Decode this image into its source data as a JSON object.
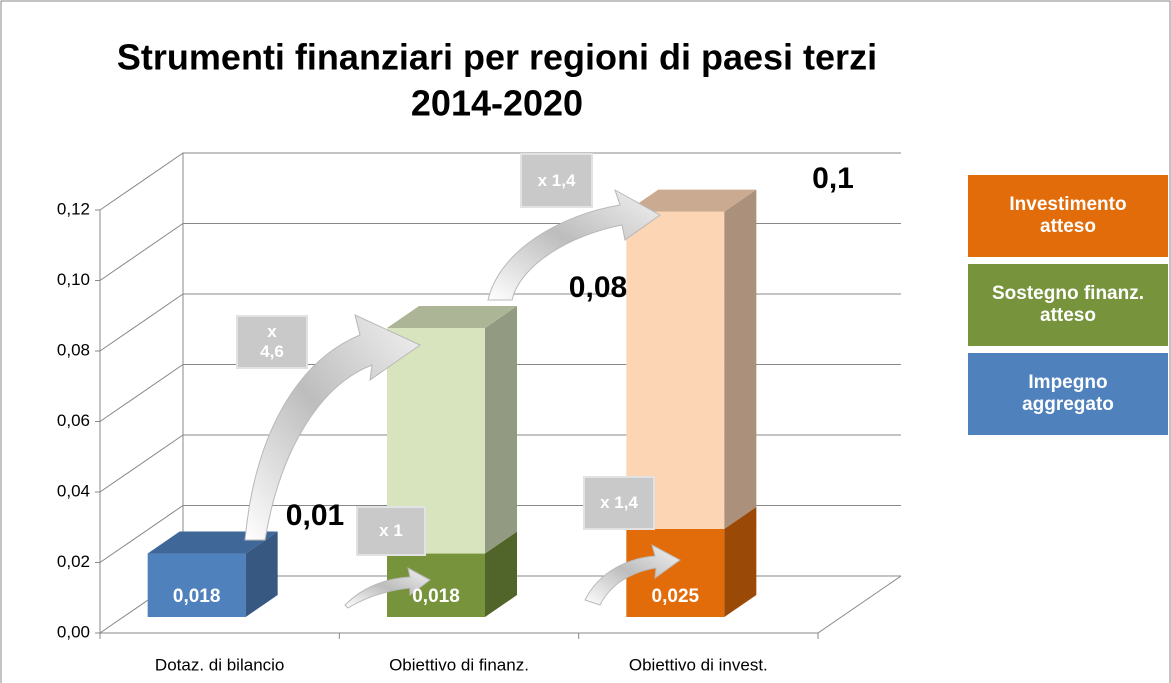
{
  "chart_data": {
    "type": "bar3d",
    "title": "Strumenti finanziari per regioni di paesi terzi",
    "subtitle": "2014-2020",
    "categories": [
      "Dotaz. di bilancio",
      "Obiettivo di finanz.",
      "Obiettivo di invest."
    ],
    "series": [
      {
        "name": "Investimento atteso",
        "color": "#e36c0a",
        "values": [
          null,
          null,
          0.025
        ],
        "value_labels": [
          null,
          null,
          "0,025"
        ]
      },
      {
        "name": "Sostegno finanz. atteso",
        "color": "#77933c",
        "values": [
          null,
          0.018,
          null
        ],
        "value_labels": [
          null,
          "0,018",
          null
        ]
      },
      {
        "name": "Impegno aggregato",
        "color": "#4f81bd",
        "values": [
          0.018,
          null,
          null
        ],
        "value_labels": [
          "0,018",
          null,
          null
        ]
      }
    ],
    "totals": [
      null,
      0.082,
      0.115
    ],
    "total_colors": [
      null,
      "#d7e4bd",
      "#fcd5b5"
    ],
    "annotations": [
      "0,01",
      "0,08",
      "0,1",
      "x 4,6",
      "x 1",
      "x 1,4",
      "x 1,4"
    ],
    "ylim": [
      0,
      0.12
    ],
    "yticks": [
      {
        "value": 0,
        "label": "0,00"
      },
      {
        "value": 0.02,
        "label": "0,02"
      },
      {
        "value": 0.04,
        "label": "0,04"
      },
      {
        "value": 0.06,
        "label": "0,06"
      },
      {
        "value": 0.08,
        "label": "0,08"
      },
      {
        "value": 0.1,
        "label": "0,10"
      },
      {
        "value": 0.12,
        "label": "0,12"
      }
    ],
    "grid": true
  }
}
